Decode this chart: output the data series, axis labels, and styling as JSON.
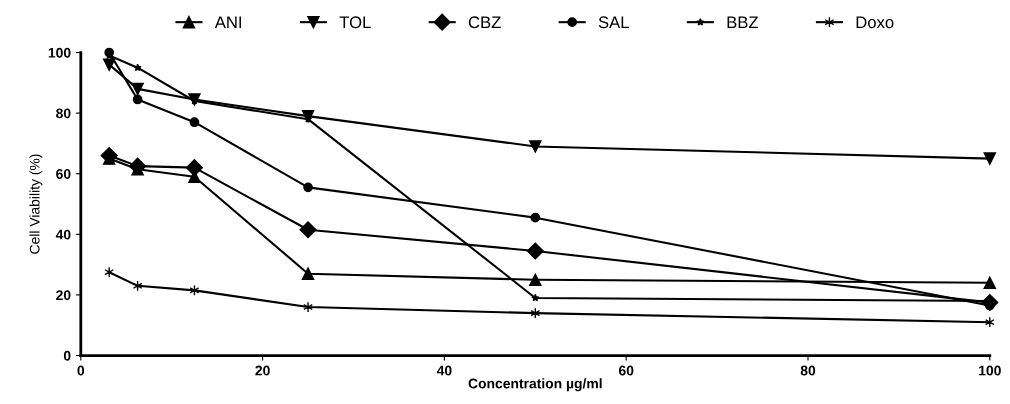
{
  "chart_data": {
    "type": "line",
    "xlabel": "Concentration µg/ml",
    "ylabel": "Cell Viability (%)",
    "xlim": [
      0,
      100
    ],
    "xticks": [
      0,
      20,
      40,
      60,
      80,
      100
    ],
    "ylim": [
      0,
      100
    ],
    "yticks": [
      0,
      20,
      40,
      60,
      80,
      100
    ],
    "x": [
      3.125,
      6.25,
      12.5,
      25,
      50,
      100
    ],
    "grid": false,
    "legend": "top",
    "line_style": "solid",
    "series": [
      {
        "name": "ANI",
        "color": "#000000",
        "marker": "triangle",
        "values": [
          65,
          61.5,
          59,
          27,
          25,
          24
        ]
      },
      {
        "name": "TOL",
        "color": "#000000",
        "marker": "triangle_down",
        "values": [
          96,
          88,
          84.5,
          79,
          69,
          65
        ]
      },
      {
        "name": "CBZ",
        "color": "#000000",
        "marker": "diamond",
        "values": [
          66,
          62.5,
          62,
          41.5,
          34.5,
          17.5
        ]
      },
      {
        "name": "SAL",
        "color": "#000000",
        "marker": "circle",
        "values": [
          100,
          84.5,
          77,
          55.5,
          45.5,
          16.5
        ]
      },
      {
        "name": "BBZ",
        "color": "#000000",
        "marker": "star",
        "values": [
          99,
          95,
          84,
          78,
          19,
          18
        ]
      },
      {
        "name": "Doxo",
        "color": "#000000",
        "marker": "cross",
        "values": [
          27.5,
          23,
          21.5,
          16,
          14,
          11
        ]
      }
    ]
  }
}
